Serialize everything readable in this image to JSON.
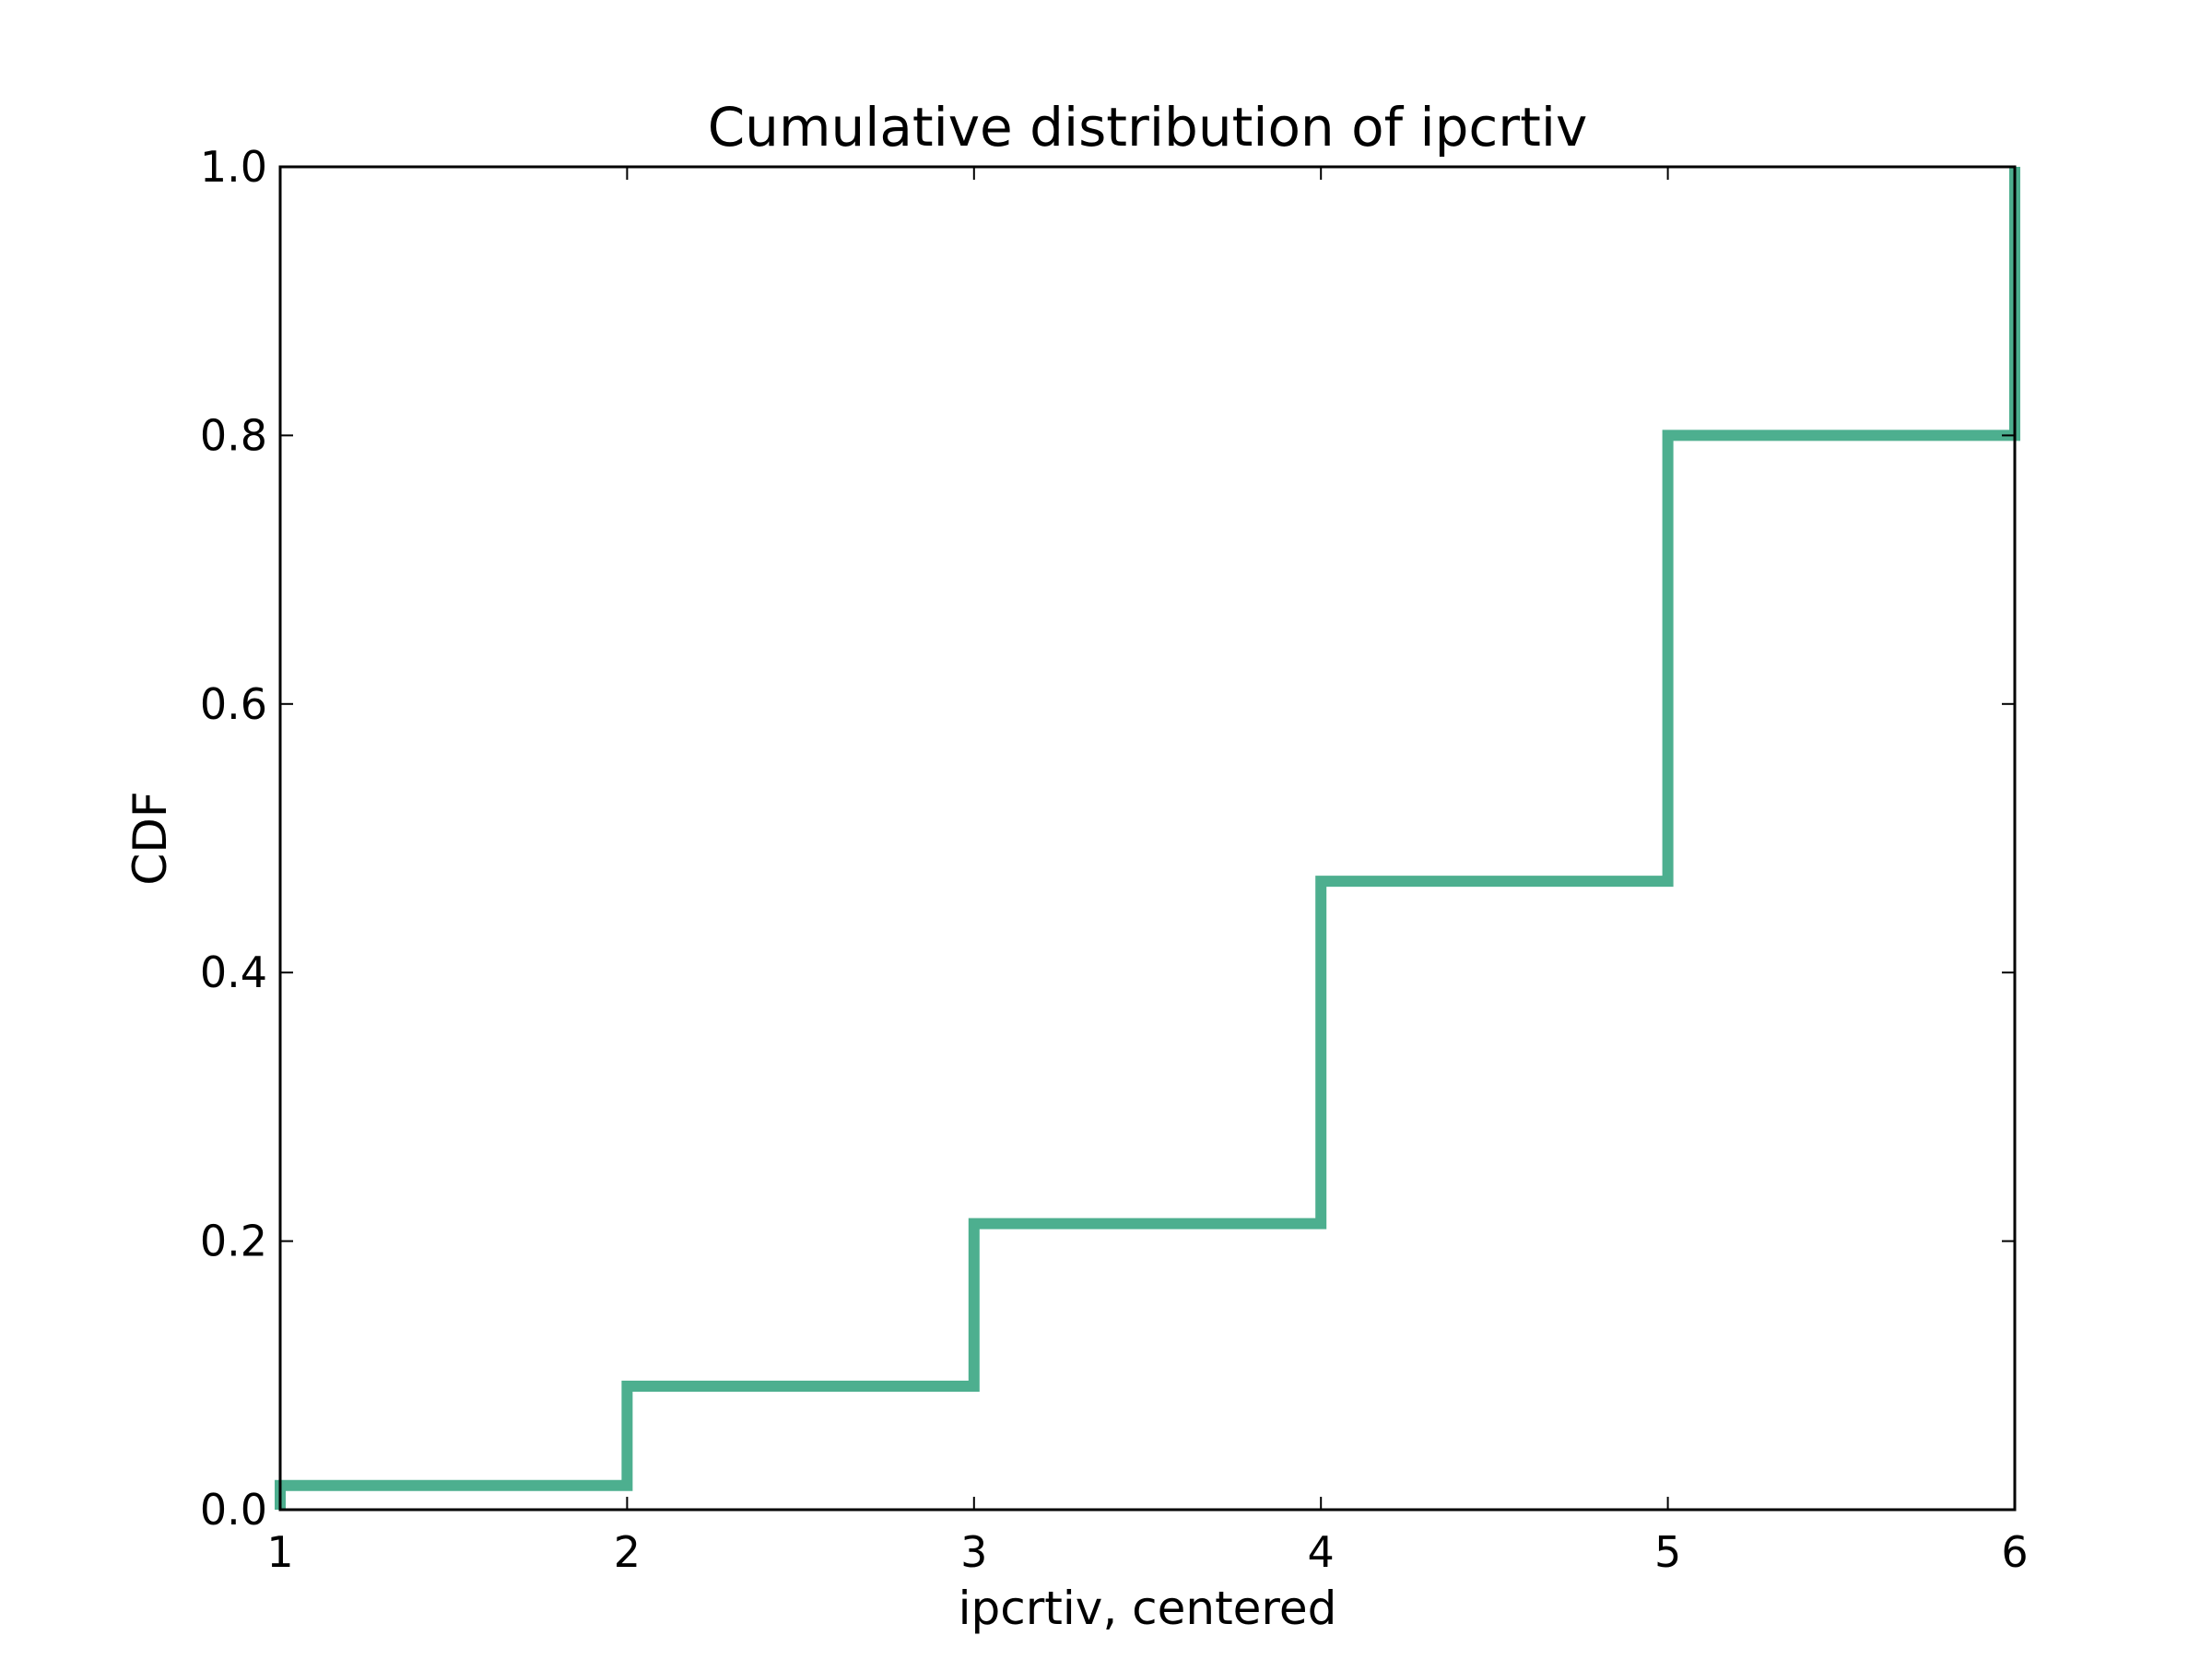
{
  "chart_data": {
    "type": "line",
    "style": "step-cdf",
    "title": "Cumulative distribution of ipcrtiv",
    "xlabel": "ipcrtiv, centered",
    "ylabel": "CDF",
    "xlim": [
      1,
      6
    ],
    "ylim": [
      0.0,
      1.0
    ],
    "xticks": [
      1,
      2,
      3,
      4,
      5,
      6
    ],
    "xtick_labels": [
      "1",
      "2",
      "3",
      "4",
      "5",
      "6"
    ],
    "yticks": [
      0.0,
      0.2,
      0.4,
      0.6,
      0.8,
      1.0
    ],
    "ytick_labels": [
      "0.0",
      "0.2",
      "0.4",
      "0.6",
      "0.8",
      "1.0"
    ],
    "grid": false,
    "legend": "none",
    "series": [
      {
        "color": "#4daf8f",
        "x": [
          1,
          2,
          3,
          4,
          5,
          6
        ],
        "y": [
          0.018,
          0.092,
          0.213,
          0.468,
          0.8,
          1.0
        ]
      }
    ]
  }
}
